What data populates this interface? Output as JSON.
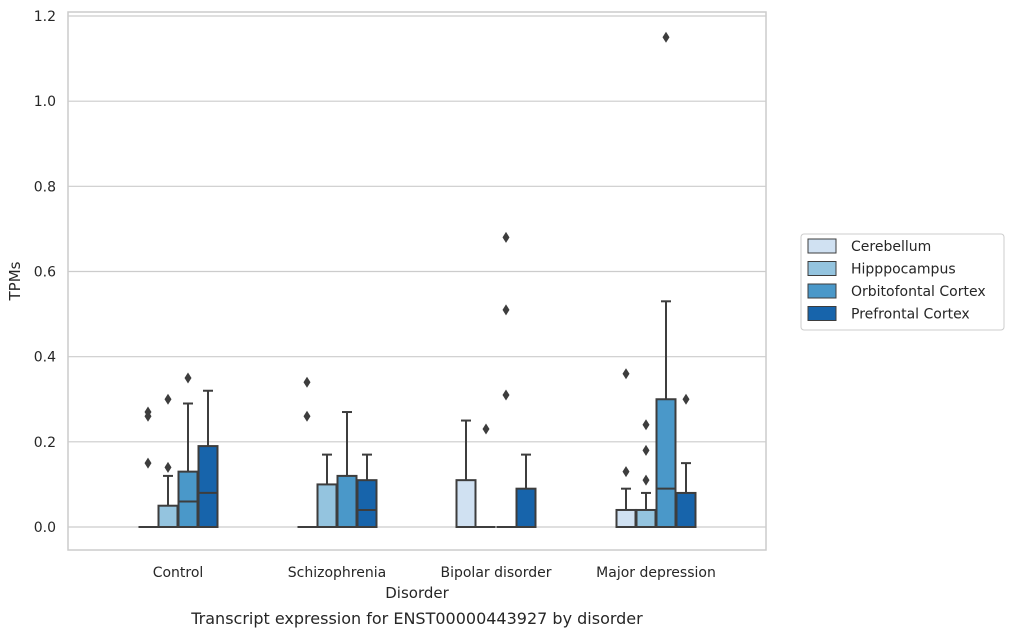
{
  "chart_data": {
    "type": "box",
    "caption": "Transcript expression for ENST00000443927 by disorder",
    "xlabel": "Disorder",
    "ylabel": "TPMs",
    "ylim": [
      -0.055,
      1.21
    ],
    "yticks": [
      0.0,
      0.2,
      0.4,
      0.6,
      0.8,
      1.0,
      1.2
    ],
    "ytick_labels": [
      "0.0",
      "0.2",
      "0.4",
      "0.6",
      "0.8",
      "1.0",
      "1.2"
    ],
    "grid": "horizontal",
    "legend_position": "right",
    "categories": [
      "Control",
      "Schizophrenia",
      "Bipolar disorder",
      "Major depression"
    ],
    "series": [
      {
        "name": "Cerebellum",
        "color": "#d0e1f2",
        "boxes": [
          {
            "min": 0,
            "q1": 0,
            "median": 0,
            "q3": 0,
            "max": 0,
            "outliers": [
              0.27,
              0.26,
              0.15
            ]
          },
          {
            "min": 0,
            "q1": 0,
            "median": 0,
            "q3": 0,
            "max": 0,
            "outliers": [
              0.34,
              0.26
            ]
          },
          {
            "min": 0,
            "q1": 0,
            "median": 0,
            "q3": 0.11,
            "max": 0.25,
            "outliers": []
          },
          {
            "min": 0,
            "q1": 0,
            "median": 0,
            "q3": 0.04,
            "max": 0.09,
            "outliers": [
              0.36,
              0.13
            ]
          }
        ]
      },
      {
        "name": "Hipppocampus",
        "color": "#94c4df",
        "boxes": [
          {
            "min": 0,
            "q1": 0,
            "median": 0,
            "q3": 0.05,
            "max": 0.12,
            "outliers": [
              0.3,
              0.14
            ]
          },
          {
            "min": 0,
            "q1": 0,
            "median": 0,
            "q3": 0.1,
            "max": 0.17,
            "outliers": []
          },
          {
            "min": 0,
            "q1": 0,
            "median": 0,
            "q3": 0,
            "max": 0,
            "outliers": [
              0.23
            ]
          },
          {
            "min": 0,
            "q1": 0,
            "median": 0,
            "q3": 0.04,
            "max": 0.08,
            "outliers": [
              0.24,
              0.18,
              0.11
            ]
          }
        ]
      },
      {
        "name": "Orbitofontal Cortex",
        "color": "#4a98c9",
        "boxes": [
          {
            "min": 0,
            "q1": 0,
            "median": 0.06,
            "q3": 0.13,
            "max": 0.29,
            "outliers": [
              0.35
            ]
          },
          {
            "min": 0,
            "q1": 0,
            "median": 0,
            "q3": 0.12,
            "max": 0.27,
            "outliers": []
          },
          {
            "min": 0,
            "q1": 0,
            "median": 0,
            "q3": 0,
            "max": 0,
            "outliers": [
              0.68,
              0.51,
              0.31
            ]
          },
          {
            "min": 0,
            "q1": 0,
            "median": 0.09,
            "q3": 0.3,
            "max": 0.53,
            "outliers": [
              1.15
            ]
          }
        ]
      },
      {
        "name": "Prefrontal Cortex",
        "color": "#1764ab",
        "boxes": [
          {
            "min": 0,
            "q1": 0,
            "median": 0.08,
            "q3": 0.19,
            "max": 0.32,
            "outliers": []
          },
          {
            "min": 0,
            "q1": 0,
            "median": 0.04,
            "q3": 0.11,
            "max": 0.17,
            "outliers": []
          },
          {
            "min": 0,
            "q1": 0,
            "median": 0,
            "q3": 0.09,
            "max": 0.17,
            "outliers": []
          },
          {
            "min": 0,
            "q1": 0,
            "median": 0,
            "q3": 0.08,
            "max": 0.15,
            "outliers": [
              0.3
            ]
          }
        ]
      }
    ]
  }
}
